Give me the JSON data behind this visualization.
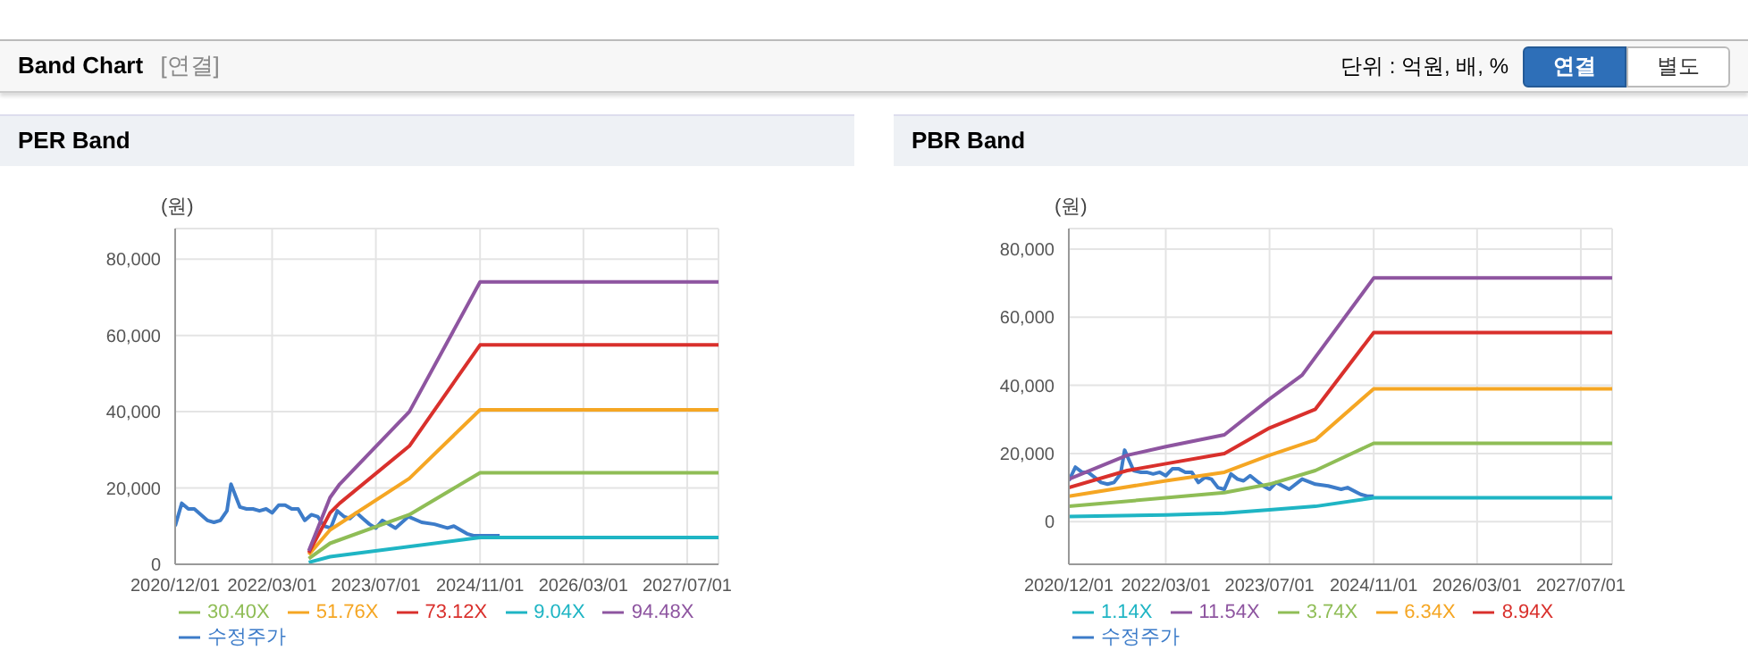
{
  "chart_data": [
    {
      "type": "other",
      "title": "Band Chart",
      "annotations": [
        "[연결]",
        "단위 : 억원, 배, %",
        "연결",
        "별도"
      ]
    },
    {
      "type": "line",
      "title": "PER Band",
      "ylabel": "(원)",
      "xlim": [
        "2020-12-01",
        "2027-11-25"
      ],
      "xticks": [
        {
          "value": "2020-12-01",
          "label": "2020/12/01"
        },
        {
          "value": "2022-03-01",
          "label": "2022/03/01"
        },
        {
          "value": "2023-07-01",
          "label": "2023/07/01"
        },
        {
          "value": "2024-11-01",
          "label": "2024/11/01"
        },
        {
          "value": "2026-03-01",
          "label": "2026/03/01"
        },
        {
          "value": "2027-07-01",
          "label": "2027/07/01"
        }
      ],
      "ylim": [
        0,
        88000
      ],
      "yticks": [
        0,
        {
          "value": 20000,
          "label": "20,000"
        },
        {
          "value": 40000,
          "label": "40,000"
        },
        {
          "value": 60000,
          "label": "60,000"
        },
        {
          "value": 80000,
          "label": "80,000"
        }
      ],
      "grid": true,
      "legend": "bottom",
      "marker": "none",
      "line_style": "solid",
      "series": [
        {
          "name": "수정주가",
          "color": "#3d7cc9",
          "x": [
            "2020-12-01",
            "2021-01-01",
            "2021-02-01",
            "2021-03-01",
            "2021-04-01",
            "2021-05-01",
            "2021-06-01",
            "2021-07-01",
            "2021-08-01",
            "2021-08-20",
            "2021-10-01",
            "2021-11-01",
            "2021-12-01",
            "2022-01-01",
            "2022-02-01",
            "2022-03-01",
            "2022-04-01",
            "2022-05-01",
            "2022-06-01",
            "2022-07-01",
            "2022-08-01",
            "2022-09-01",
            "2022-10-01",
            "2022-11-01",
            "2022-12-01",
            "2023-01-01",
            "2023-02-01",
            "2023-03-01",
            "2023-04-01",
            "2023-05-01",
            "2023-06-01",
            "2023-07-01",
            "2023-08-01",
            "2023-10-01",
            "2023-12-01",
            "2024-02-01",
            "2024-04-01",
            "2024-06-01",
            "2024-07-01",
            "2024-09-01",
            "2024-10-01",
            "2024-11-01",
            "2025-02-01"
          ],
          "values": [
            10000,
            16000,
            14500,
            14500,
            13000,
            11500,
            11000,
            11500,
            14000,
            21000,
            15000,
            14500,
            14500,
            14000,
            14500,
            13500,
            15500,
            15500,
            14500,
            14500,
            11500,
            13000,
            12500,
            10000,
            9500,
            14000,
            12500,
            12000,
            13500,
            12000,
            10500,
            9500,
            11500,
            9500,
            12500,
            11000,
            10500,
            9500,
            10000,
            8000,
            7500,
            7500,
            7500
          ]
        },
        {
          "name": "9.04X",
          "color": "#1fb5c4",
          "x": [
            "2022-08-20",
            "2022-11-28",
            "2024-11-01",
            "2027-11-25"
          ],
          "values": [
            500,
            2000,
            7000,
            7000
          ]
        },
        {
          "name": "30.40X",
          "color": "#8fbd56",
          "x": [
            "2022-08-20",
            "2022-11-28",
            "2023-12-05",
            "2024-11-01",
            "2027-11-25"
          ],
          "values": [
            1500,
            5500,
            13000,
            24000,
            24000
          ]
        },
        {
          "name": "51.76X",
          "color": "#f5a623",
          "x": [
            "2022-08-20",
            "2022-11-28",
            "2023-12-05",
            "2024-11-01",
            "2027-11-25"
          ],
          "values": [
            2500,
            9000,
            22500,
            40500,
            40500
          ]
        },
        {
          "name": "73.12X",
          "color": "#d9302c",
          "x": [
            "2022-08-20",
            "2022-11-28",
            "2023-01-12",
            "2023-12-05",
            "2024-11-01",
            "2027-11-25"
          ],
          "values": [
            3000,
            13500,
            16000,
            31000,
            57500,
            57500
          ]
        },
        {
          "name": "94.48X",
          "color": "#8e55a0",
          "x": [
            "2022-08-20",
            "2022-11-28",
            "2023-01-12",
            "2023-12-05",
            "2024-11-01",
            "2027-11-25"
          ],
          "values": [
            3500,
            17500,
            21000,
            40000,
            74000,
            74000
          ]
        }
      ]
    },
    {
      "type": "line",
      "title": "PBR Band",
      "ylabel": "(원)",
      "xlim": [
        "2020-12-01",
        "2027-11-25"
      ],
      "xticks": [
        {
          "value": "2020-12-01",
          "label": "2020/12/01"
        },
        {
          "value": "2022-03-01",
          "label": "2022/03/01"
        },
        {
          "value": "2023-07-01",
          "label": "2023/07/01"
        },
        {
          "value": "2024-11-01",
          "label": "2024/11/01"
        },
        {
          "value": "2026-03-01",
          "label": "2026/03/01"
        },
        {
          "value": "2027-07-01",
          "label": "2027/07/01"
        }
      ],
      "ylim": [
        -12500,
        86000
      ],
      "yticks": [
        0,
        {
          "value": 20000,
          "label": "20,000"
        },
        {
          "value": 40000,
          "label": "40,000"
        },
        {
          "value": 60000,
          "label": "60,000"
        },
        {
          "value": 80000,
          "label": "80,000"
        }
      ],
      "grid": true,
      "legend": "bottom",
      "marker": "none",
      "line_style": "solid",
      "series": [
        {
          "name": "수정주가",
          "color": "#3d7cc9",
          "x": [
            "2020-12-01",
            "2021-01-01",
            "2021-02-01",
            "2021-03-01",
            "2021-04-01",
            "2021-05-01",
            "2021-06-01",
            "2021-07-01",
            "2021-08-01",
            "2021-08-20",
            "2021-10-01",
            "2021-11-01",
            "2021-12-01",
            "2022-01-01",
            "2022-02-01",
            "2022-03-01",
            "2022-04-01",
            "2022-05-01",
            "2022-06-01",
            "2022-07-01",
            "2022-08-01",
            "2022-09-01",
            "2022-10-01",
            "2022-11-01",
            "2022-12-01",
            "2023-01-01",
            "2023-02-01",
            "2023-03-01",
            "2023-04-01",
            "2023-05-01",
            "2023-06-01",
            "2023-07-01",
            "2023-08-01",
            "2023-10-01",
            "2023-12-01",
            "2024-02-01",
            "2024-04-01",
            "2024-06-01",
            "2024-07-01",
            "2024-09-01",
            "2024-10-01",
            "2024-11-01"
          ],
          "values": [
            12000,
            16000,
            14500,
            14500,
            13000,
            11500,
            11000,
            11500,
            14000,
            21000,
            15000,
            14500,
            14500,
            14000,
            14500,
            13500,
            15500,
            15500,
            14500,
            14500,
            11500,
            13000,
            12500,
            10000,
            9500,
            14000,
            12500,
            12000,
            13500,
            12000,
            10500,
            9500,
            11500,
            9500,
            12500,
            11000,
            10500,
            9500,
            10000,
            8000,
            7500,
            7500
          ]
        },
        {
          "name": "1.14X",
          "color": "#1fb5c4",
          "x": [
            "2020-12-01",
            "2022-03-01",
            "2022-12-01",
            "2023-07-01",
            "2024-02-01",
            "2024-11-01",
            "2027-11-25"
          ],
          "values": [
            1500,
            2000,
            2500,
            3500,
            4500,
            7000,
            7000
          ]
        },
        {
          "name": "3.74X",
          "color": "#8fbd56",
          "x": [
            "2020-12-01",
            "2022-03-01",
            "2022-12-01",
            "2023-07-01",
            "2024-02-01",
            "2024-11-01",
            "2027-11-25"
          ],
          "values": [
            4500,
            7000,
            8500,
            11000,
            15000,
            23000,
            23000
          ]
        },
        {
          "name": "6.34X",
          "color": "#f5a623",
          "x": [
            "2020-12-01",
            "2022-03-01",
            "2022-12-01",
            "2023-07-01",
            "2024-02-01",
            "2024-11-01",
            "2027-11-25"
          ],
          "values": [
            7500,
            12000,
            14500,
            19500,
            24000,
            39000,
            39000
          ]
        },
        {
          "name": "8.94X",
          "color": "#d9302c",
          "x": [
            "2020-12-01",
            "2021-09-01",
            "2022-03-01",
            "2022-12-01",
            "2023-07-01",
            "2024-02-01",
            "2024-11-01",
            "2027-11-25"
          ],
          "values": [
            10000,
            15000,
            17000,
            20000,
            27500,
            33000,
            55500,
            55500
          ]
        },
        {
          "name": "11.54X",
          "color": "#8e55a0",
          "x": [
            "2020-12-01",
            "2021-09-01",
            "2022-03-01",
            "2022-12-01",
            "2023-07-01",
            "2023-12-01",
            "2024-11-01",
            "2027-11-25"
          ],
          "values": [
            12500,
            19500,
            22000,
            25500,
            36000,
            43000,
            71500,
            71500
          ]
        }
      ]
    }
  ]
}
